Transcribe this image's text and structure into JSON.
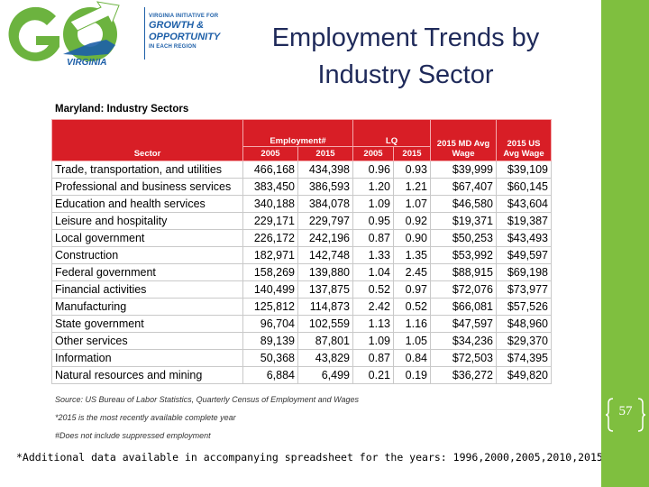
{
  "logo": {
    "initiative": "VIRGINIA INITIATIVE FOR",
    "growth": "GROWTH &",
    "opportunity": "OPPORTUNITY",
    "region": "IN EACH REGION",
    "state": "VIRGINIA"
  },
  "title": {
    "line1": "Employment Trends by",
    "line2": "Industry Sector"
  },
  "table": {
    "caption": "Maryland: Industry Sectors",
    "headers": {
      "sector": "Sector",
      "employment": "Employment#",
      "lq": "LQ",
      "md_wage": "2015 MD Avg Wage",
      "us_wage": "2015 US Avg Wage",
      "y2005": "2005",
      "y2015": "2015"
    },
    "rows": [
      [
        "Trade, transportation, and utilities",
        "466,168",
        "434,398",
        "0.96",
        "0.93",
        "$39,999",
        "$39,109"
      ],
      [
        "Professional and business services",
        "383,450",
        "386,593",
        "1.20",
        "1.21",
        "$67,407",
        "$60,145"
      ],
      [
        "Education and health services",
        "340,188",
        "384,078",
        "1.09",
        "1.07",
        "$46,580",
        "$43,604"
      ],
      [
        "Leisure and hospitality",
        "229,171",
        "229,797",
        "0.95",
        "0.92",
        "$19,371",
        "$19,387"
      ],
      [
        "Local government",
        "226,172",
        "242,196",
        "0.87",
        "0.90",
        "$50,253",
        "$43,493"
      ],
      [
        "Construction",
        "182,971",
        "142,748",
        "1.33",
        "1.35",
        "$53,992",
        "$49,597"
      ],
      [
        "Federal government",
        "158,269",
        "139,880",
        "1.04",
        "2.45",
        "$88,915",
        "$69,198"
      ],
      [
        "Financial activities",
        "140,499",
        "137,875",
        "0.52",
        "0.97",
        "$72,076",
        "$73,977"
      ],
      [
        "Manufacturing",
        "125,812",
        "114,873",
        "2.42",
        "0.52",
        "$66,081",
        "$57,526"
      ],
      [
        "State government",
        "96,704",
        "102,559",
        "1.13",
        "1.16",
        "$47,597",
        "$48,960"
      ],
      [
        "Other services",
        "89,139",
        "87,801",
        "1.09",
        "1.05",
        "$34,236",
        "$29,370"
      ],
      [
        "Information",
        "50,368",
        "43,829",
        "0.87",
        "0.84",
        "$72,503",
        "$74,395"
      ],
      [
        "Natural resources and mining",
        "6,884",
        "6,499",
        "0.21",
        "0.19",
        "$36,272",
        "$49,820"
      ]
    ],
    "notes": [
      "Source: US Bureau of Labor Statistics, Quarterly Census of Employment and Wages",
      "*2015 is the most recently available complete year",
      "#Does not include suppressed employment"
    ]
  },
  "footer_note": "*Additional data available in accompanying spreadsheet for the years: 1996,2000,2005,2010,2015",
  "page_number": "57",
  "colors": {
    "accent_bar": "#7fbf3f",
    "header_red": "#d81e26",
    "title_navy": "#1f2a5a",
    "logo_green": "#6cb33f",
    "logo_blue": "#1d5fa8"
  }
}
